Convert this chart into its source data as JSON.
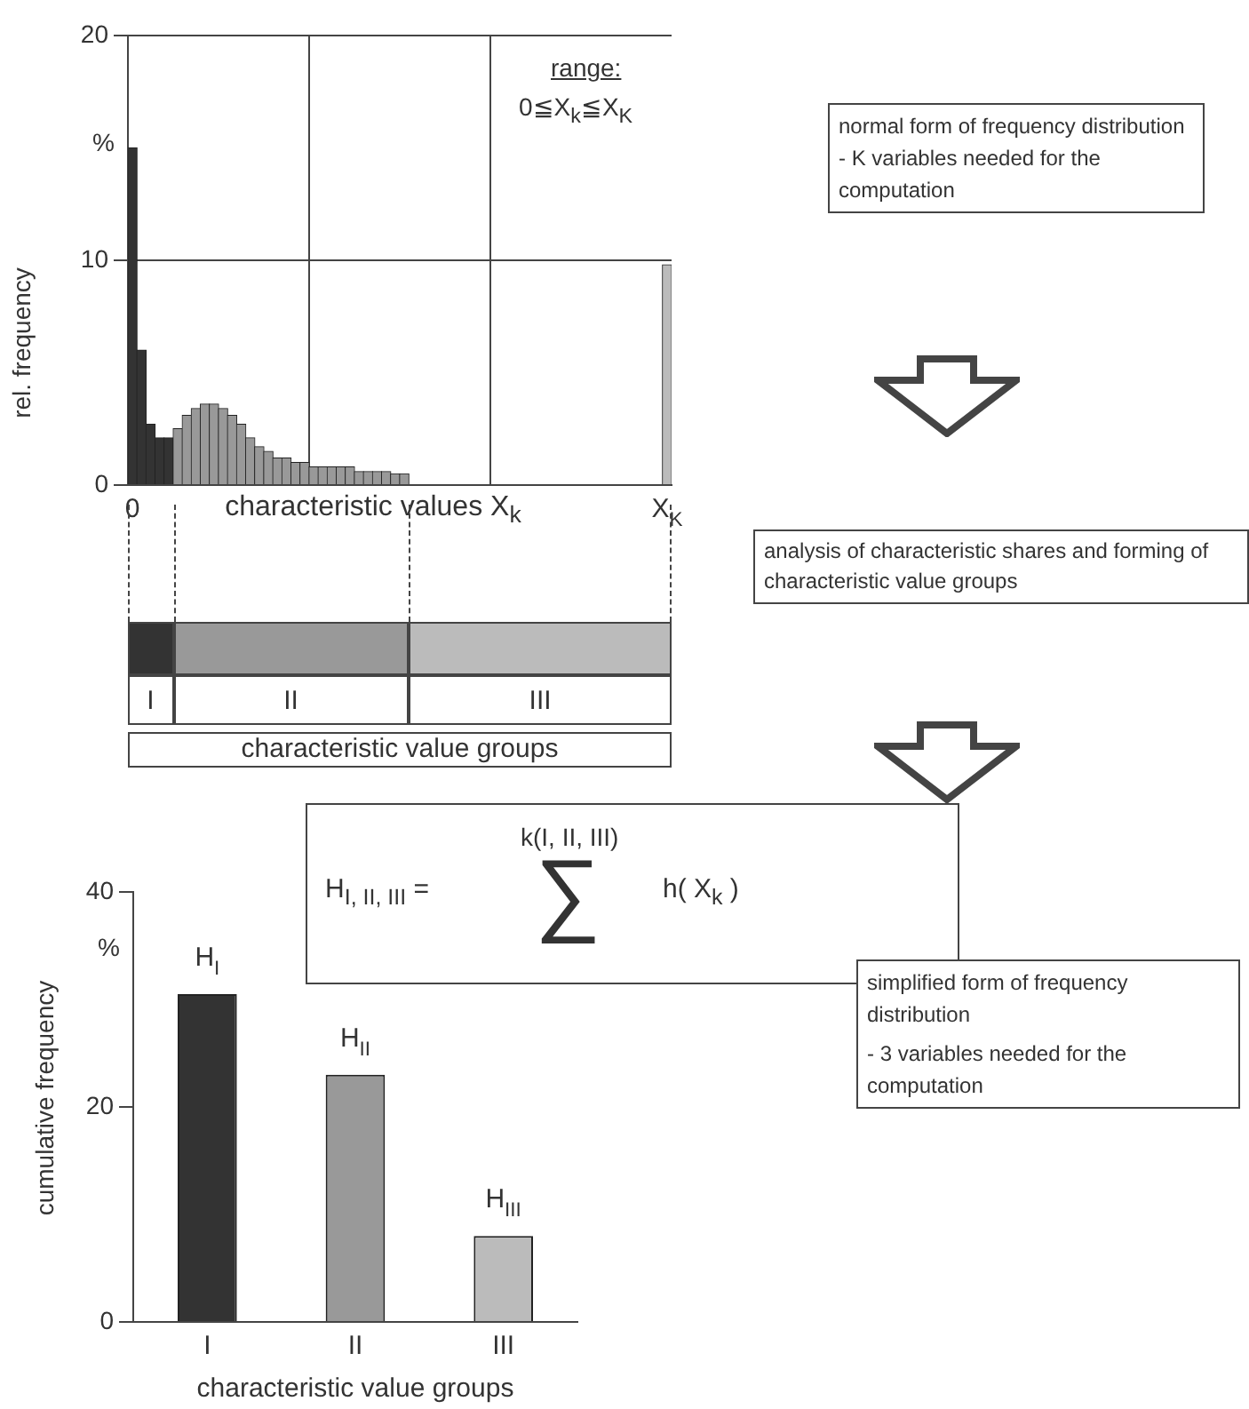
{
  "chart_data": [
    {
      "type": "bar",
      "xlabel": "characteristic values X$_{k}$",
      "ylabel": "rel. frequency",
      "categories": [
        "0",
        null,
        null,
        null,
        null,
        null,
        null,
        null,
        null,
        null,
        null,
        null,
        null,
        null,
        null,
        null,
        null,
        null,
        null,
        null,
        null,
        null,
        null,
        null,
        null,
        null,
        null,
        null,
        null,
        null,
        null,
        null,
        null,
        null,
        null,
        null,
        null,
        null,
        null,
        null,
        null,
        null,
        null,
        null,
        null,
        null,
        null,
        null,
        null,
        null,
        null,
        null,
        null,
        null,
        null,
        null,
        null,
        null,
        null,
        "X$_{K}$"
      ],
      "values": [
        15,
        6,
        2.7,
        2.1,
        2.1,
        2.5,
        3.1,
        3.4,
        3.6,
        3.6,
        3.4,
        3.1,
        2.7,
        2.1,
        1.7,
        1.5,
        1.2,
        1.2,
        1.0,
        1.0,
        0.8,
        0.8,
        0.8,
        0.8,
        0.8,
        0.6,
        0.6,
        0.6,
        0.6,
        0.5,
        0.5,
        0,
        0,
        0,
        0,
        0,
        0,
        0,
        0,
        0,
        0,
        0,
        0,
        0,
        0,
        0,
        0,
        0,
        0,
        0,
        0,
        0,
        0,
        0,
        0,
        0,
        0,
        0,
        0,
        9.8
      ],
      "colors": [
        "#333333",
        "#333333",
        "#333333",
        "#333333",
        "#333333",
        "#999999",
        "#999999",
        "#999999",
        "#999999",
        "#999999",
        "#999999",
        "#999999",
        "#999999",
        "#999999",
        "#999999",
        "#999999",
        "#999999",
        "#999999",
        "#999999",
        "#999999",
        "#999999",
        "#999999",
        "#999999",
        "#999999",
        "#999999",
        "#999999",
        "#999999",
        "#999999",
        "#999999",
        "#999999",
        "#999999",
        "#bbbbbb",
        "#bbbbbb",
        "#bbbbbb",
        "#bbbbbb",
        "#bbbbbb",
        "#bbbbbb",
        "#bbbbbb",
        "#bbbbbb",
        "#bbbbbb",
        "#bbbbbb",
        "#bbbbbb",
        "#bbbbbb",
        "#bbbbbb",
        "#bbbbbb",
        "#bbbbbb",
        "#bbbbbb",
        "#bbbbbb",
        "#bbbbbb",
        "#bbbbbb",
        "#bbbbbb",
        "#bbbbbb",
        "#bbbbbb",
        "#bbbbbb",
        "#bbbbbb",
        "#bbbbbb",
        "#bbbbbb",
        "#bbbbbb",
        "#bbbbbb",
        "#bbbbbb"
      ],
      "ylim": [
        0,
        20
      ],
      "yticks": [
        0,
        10,
        20
      ],
      "grid": true,
      "annotations": [
        "%",
        "range:",
        "0≦X$_{k}$≦X$_{K}$",
        "I",
        "II",
        "III",
        "characteristic value groups"
      ]
    },
    {
      "type": "bar",
      "xlabel": "characteristic value groups",
      "ylabel": "cumulative frequency",
      "categories": [
        "I",
        "II",
        "III"
      ],
      "values": [
        30.5,
        23,
        8
      ],
      "colors": [
        "#333333",
        "#999999",
        "#bbbbbb"
      ],
      "value_labels": [
        "H$_{I}$",
        "H$_{II}$",
        "H$_{III}$"
      ],
      "ylim": [
        0,
        40
      ],
      "yticks": [
        0,
        20,
        40
      ],
      "annotations": [
        "%"
      ]
    },
    {
      "type": "other",
      "annotations": [
        "normal form of frequency distribution",
        "- K variables needed for the computation",
        "analysis of characteristic shares and forming of characteristic value groups",
        "H$_{I, II, III}$ =",
        "k(I, II, III)",
        "∑",
        "h( X$_{k}$ )",
        "simplified form of frequency distribution",
        "- 3 variables needed for the computation"
      ]
    }
  ]
}
